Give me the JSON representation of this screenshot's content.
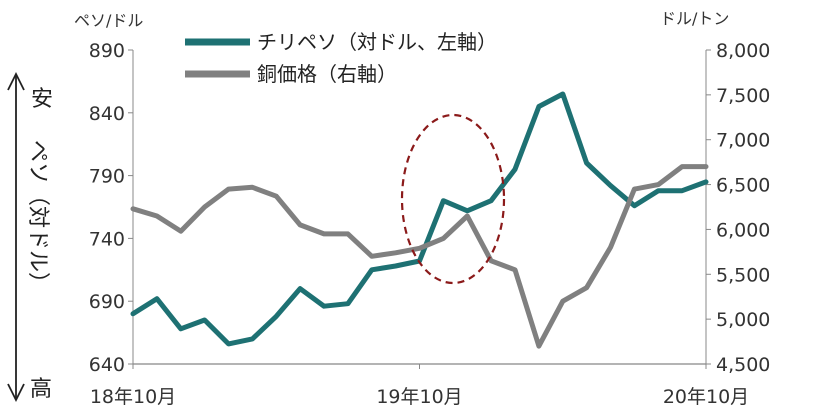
{
  "chart_data": {
    "type": "line",
    "left_unit": "ペソ/ドル",
    "right_unit": "ドル/トン",
    "left_side_label": "ペソ（対ドル）",
    "arrow_top_label": "安",
    "arrow_bottom_label": "高",
    "x_tick_labels": [
      "18年10月",
      "19年10月",
      "20年10月"
    ],
    "left_ylim": [
      640,
      890
    ],
    "right_ylim": [
      4500,
      8000
    ],
    "left_ticks": [
      "890",
      "840",
      "790",
      "740",
      "690",
      "640"
    ],
    "right_ticks": [
      "8,000",
      "7,500",
      "7,000",
      "6,500",
      "6,000",
      "5,500",
      "5,000",
      "4,500"
    ],
    "grid": false,
    "legend_position": "top-center",
    "series": [
      {
        "name": "チリペソ（対ドル、左軸）",
        "axis": "left",
        "color": "#1e7173",
        "x": [
          "2018-10",
          "2018-11",
          "2018-12",
          "2019-01",
          "2019-02",
          "2019-03",
          "2019-04",
          "2019-05",
          "2019-06",
          "2019-07",
          "2019-08",
          "2019-09",
          "2019-10",
          "2019-11",
          "2019-12",
          "2020-01",
          "2020-02",
          "2020-03",
          "2020-04",
          "2020-05",
          "2020-06",
          "2020-07",
          "2020-08",
          "2020-09",
          "2020-10"
        ],
        "values": [
          680,
          692,
          668,
          675,
          656,
          660,
          678,
          700,
          686,
          688,
          715,
          718,
          722,
          770,
          762,
          770,
          795,
          845,
          855,
          800,
          782,
          766,
          778,
          778,
          785
        ]
      },
      {
        "name": "銅価格（右軸）",
        "axis": "right",
        "color": "#808080",
        "x": [
          "2018-10",
          "2018-11",
          "2018-12",
          "2019-01",
          "2019-02",
          "2019-03",
          "2019-04",
          "2019-05",
          "2019-06",
          "2019-07",
          "2019-08",
          "2019-09",
          "2019-10",
          "2019-11",
          "2019-12",
          "2020-01",
          "2020-02",
          "2020-03",
          "2020-04",
          "2020-05",
          "2020-06",
          "2020-07",
          "2020-08",
          "2020-09",
          "2020-10"
        ],
        "values": [
          6230,
          6150,
          5980,
          6250,
          6450,
          6470,
          6370,
          6050,
          5950,
          5950,
          5700,
          5740,
          5790,
          5900,
          6150,
          5650,
          5550,
          4700,
          5200,
          5350,
          5800,
          6450,
          6500,
          6700,
          6700
        ]
      }
    ],
    "annotations": [
      {
        "type": "dashed-ellipse",
        "color": "#8b1a1a",
        "x_range": [
          "2019-10",
          "2019-12"
        ]
      }
    ]
  }
}
